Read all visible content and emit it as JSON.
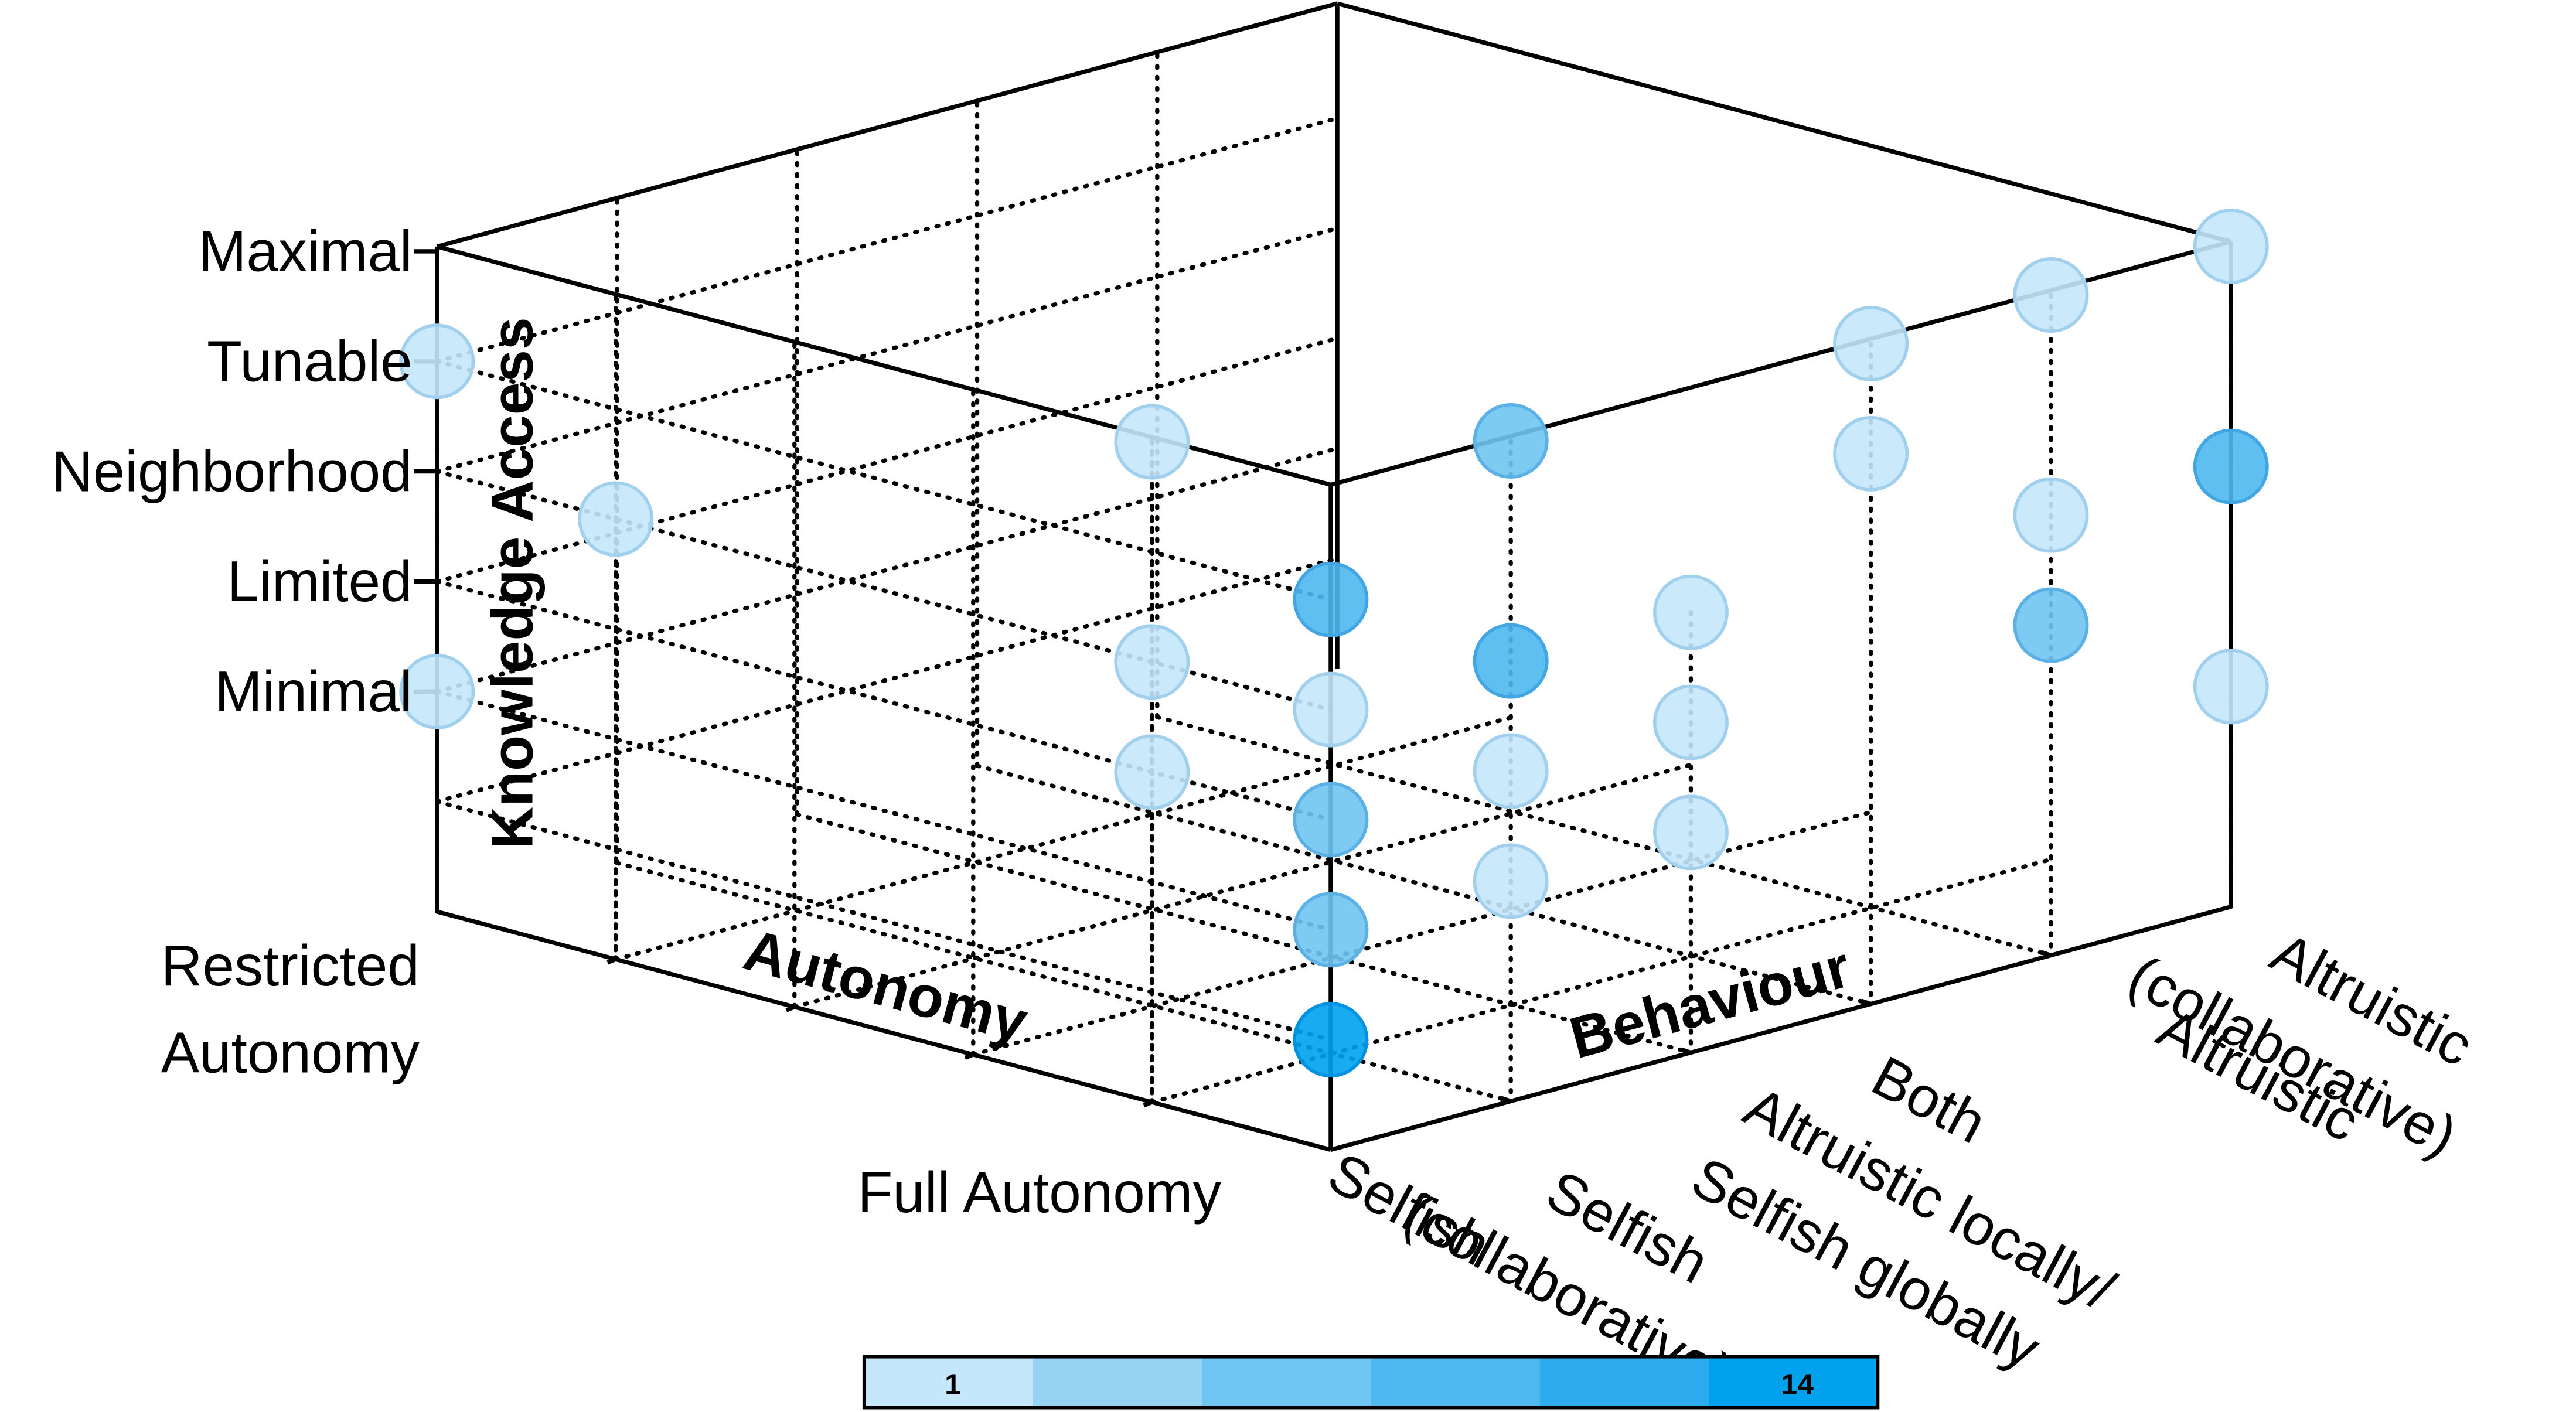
{
  "chart_data": {
    "type": "scatter",
    "dimensions": 3,
    "axes": {
      "autonomy": {
        "title": "Autonomy",
        "ticks": [
          {
            "label_lines": [
              "Restricted",
              "Autonomy"
            ]
          },
          {
            "label_lines": [
              ""
            ]
          },
          {
            "label_lines": [
              ""
            ]
          },
          {
            "label_lines": [
              ""
            ]
          },
          {
            "label_lines": [
              ""
            ]
          },
          {
            "label_lines": [
              "Full Autonomy"
            ]
          }
        ]
      },
      "behaviour": {
        "title": "Behaviour",
        "ticks": [
          {
            "label_lines": [
              "Selfish"
            ]
          },
          {
            "label_lines": [
              "Selfish",
              "(collaborative)"
            ]
          },
          {
            "label_lines": [
              "Both",
              "Altruistic locally/",
              "Selfish globally"
            ]
          },
          {
            "label_lines": [
              "Altruistic"
            ]
          },
          {
            "label_lines": [
              "Altruistic",
              "(collaborative)"
            ]
          }
        ]
      },
      "knowledge_access": {
        "title": "Knowledge Access",
        "ticks": [
          "Minimal",
          "Limited",
          "Neighborhood",
          "Tunable",
          "Maximal"
        ]
      }
    },
    "points": [
      {
        "autonomy": 0,
        "behaviour": 0,
        "knowledge": 0,
        "count": 1
      },
      {
        "autonomy": 0,
        "behaviour": 0,
        "knowledge": 3,
        "count": 1
      },
      {
        "autonomy": 1,
        "behaviour": 0,
        "knowledge": 2,
        "count": 1
      },
      {
        "autonomy": 4,
        "behaviour": 0,
        "knowledge": 4,
        "count": 1
      },
      {
        "autonomy": 4,
        "behaviour": 0,
        "knowledge": 2,
        "count": 1
      },
      {
        "autonomy": 4,
        "behaviour": 0,
        "knowledge": 1,
        "count": 1
      },
      {
        "autonomy": 5,
        "behaviour": 0,
        "knowledge": 3,
        "count": 8
      },
      {
        "autonomy": 5,
        "behaviour": 0,
        "knowledge": 2,
        "count": 1
      },
      {
        "autonomy": 5,
        "behaviour": 0,
        "knowledge": 1,
        "count": 5
      },
      {
        "autonomy": 5,
        "behaviour": 0,
        "knowledge": 0,
        "count": 5
      },
      {
        "autonomy": 5,
        "behaviour": 0,
        "knowledge": -1,
        "count": 14
      },
      {
        "autonomy": 5,
        "behaviour": 1,
        "knowledge": 4,
        "count": 5
      },
      {
        "autonomy": 5,
        "behaviour": 1,
        "knowledge": 2,
        "count": 9
      },
      {
        "autonomy": 5,
        "behaviour": 1,
        "knowledge": 1,
        "count": 1
      },
      {
        "autonomy": 5,
        "behaviour": 1,
        "knowledge": 0,
        "count": 1
      },
      {
        "autonomy": 5,
        "behaviour": 2,
        "knowledge": 2,
        "count": 1
      },
      {
        "autonomy": 5,
        "behaviour": 2,
        "knowledge": 1,
        "count": 1
      },
      {
        "autonomy": 5,
        "behaviour": 2,
        "knowledge": 0,
        "count": 1
      },
      {
        "autonomy": 5,
        "behaviour": 3,
        "knowledge": 4,
        "count": 1
      },
      {
        "autonomy": 5,
        "behaviour": 3,
        "knowledge": 3,
        "count": 1
      },
      {
        "autonomy": 5,
        "behaviour": 4,
        "knowledge": 4,
        "count": 1
      },
      {
        "autonomy": 5,
        "behaviour": 4,
        "knowledge": 2,
        "count": 2
      },
      {
        "autonomy": 5,
        "behaviour": 4,
        "knowledge": 1,
        "count": 5
      },
      {
        "autonomy": 5,
        "behaviour": 5,
        "knowledge": 4,
        "count": 1
      },
      {
        "autonomy": 5,
        "behaviour": 5,
        "knowledge": 2,
        "count": 10
      },
      {
        "autonomy": 5,
        "behaviour": 5,
        "knowledge": 0,
        "count": 1
      }
    ],
    "colorbar": {
      "min_label": "1",
      "max_label": "14",
      "min": 1,
      "max": 14,
      "colors": [
        "#c4e7fb",
        "#96d4f6",
        "#6fc5f2",
        "#4fb8ef",
        "#2cabee",
        "#00a2ee"
      ]
    },
    "grid": true
  }
}
